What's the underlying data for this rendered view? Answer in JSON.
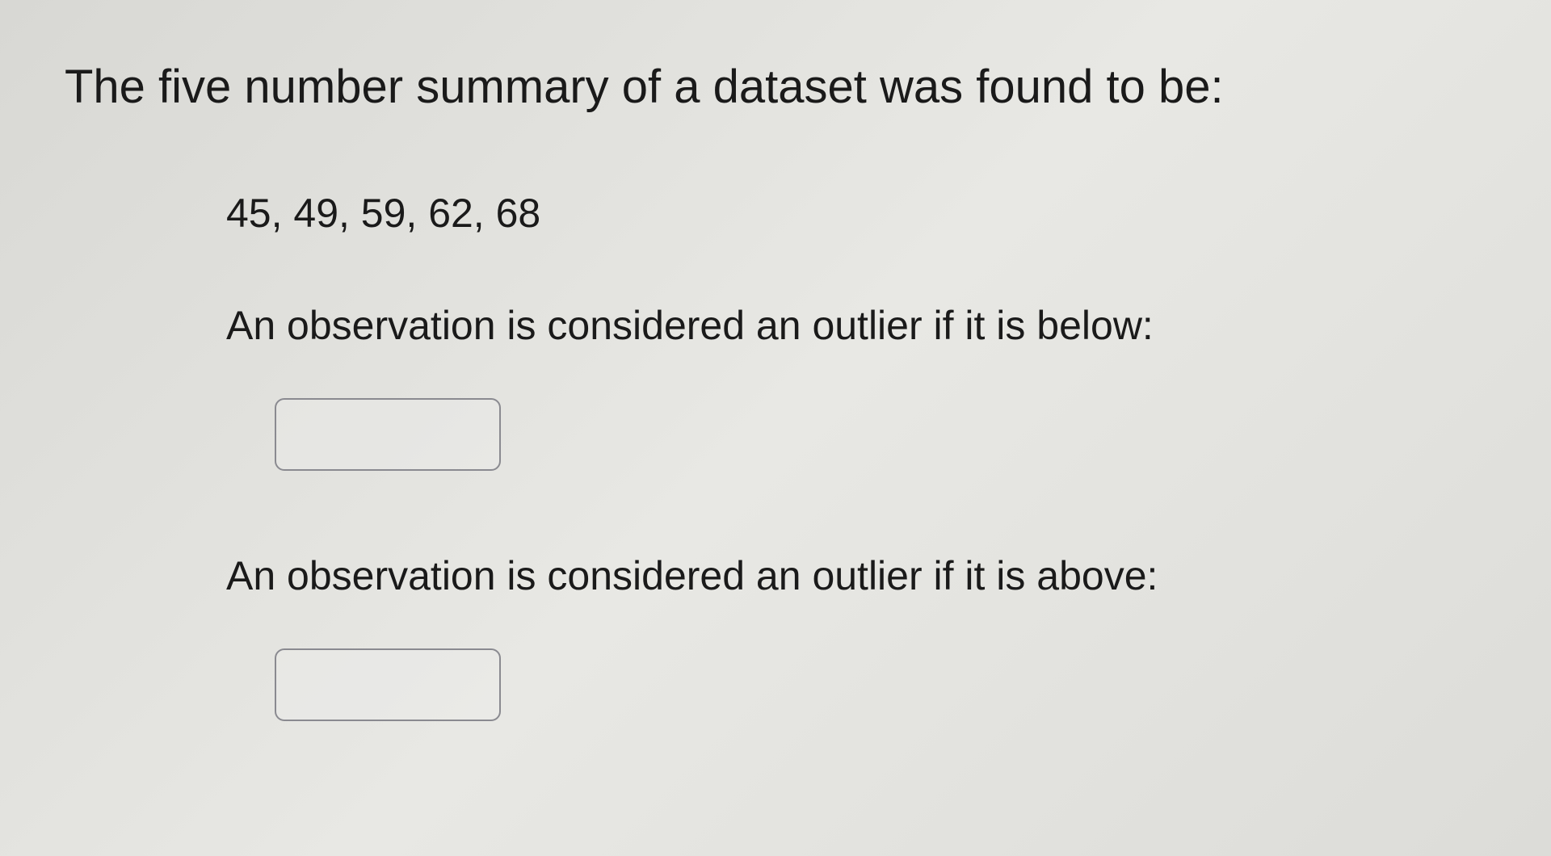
{
  "question": {
    "title": "The five number summary of a dataset was found to be:",
    "summary_values": "45, 49, 59, 62, 68",
    "prompt_below": "An observation is considered an outlier if it is below:",
    "prompt_above": "An observation is considered an outlier if it is above:",
    "input_below_value": "",
    "input_above_value": ""
  },
  "styling": {
    "background_gradient_start": "#d8d8d4",
    "background_gradient_mid": "#e8e8e4",
    "background_gradient_end": "#dcdcd8",
    "text_color": "#1a1a1a",
    "input_border_color": "#8a8a90",
    "input_border_radius": 12,
    "title_fontsize": 58,
    "body_fontsize": 50
  }
}
